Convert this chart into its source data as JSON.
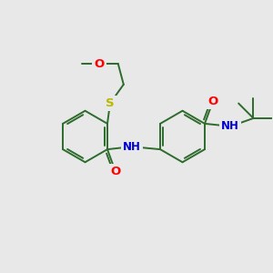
{
  "bg": "#e8e8e8",
  "bond_color": "#2d6b2d",
  "O_color": "#ff0000",
  "N_color": "#0000cc",
  "S_color": "#b8b800",
  "lw": 1.4,
  "ring_r": 0.95,
  "figsize": [
    3.0,
    3.0
  ],
  "dpi": 100,
  "xlim": [
    0,
    10
  ],
  "ylim": [
    0,
    10
  ]
}
